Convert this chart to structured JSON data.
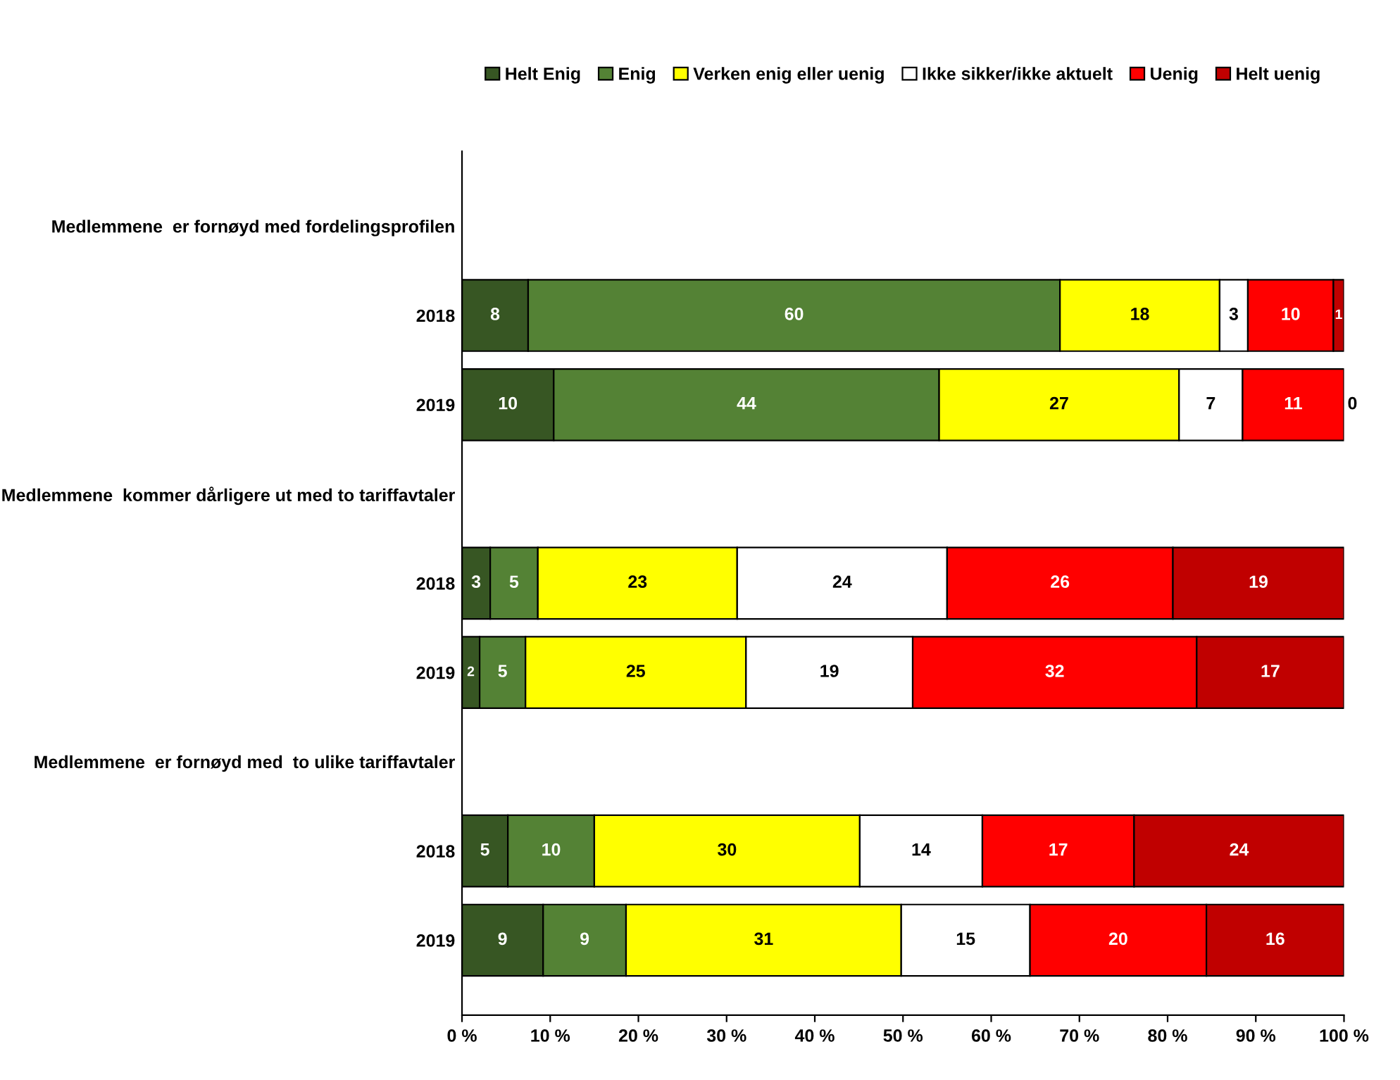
{
  "chart_data": {
    "type": "bar",
    "orientation": "horizontal",
    "stacked": true,
    "categories": [
      "Medlemmene  er fornøyd med fordelingsprofilen",
      "2018",
      "2019",
      "Medlemmene  kommer dårligere ut med to tariffavtaler",
      "2018",
      "2019",
      "Medlemmene  er fornøyd med  to ulike tariffavtaler",
      "2018",
      "2019"
    ],
    "series": [
      {
        "name": "Helt Enig",
        "color": "#375623",
        "values": [
          null,
          7.5,
          10.4,
          null,
          3.2,
          2.0,
          null,
          5.2,
          9.2
        ],
        "value_labels": [
          null,
          "8",
          "10",
          null,
          "3",
          "2",
          null,
          "5",
          "9"
        ]
      },
      {
        "name": "Enig",
        "color": "#548235",
        "values": [
          null,
          60.3,
          43.7,
          null,
          5.4,
          5.2,
          null,
          9.8,
          9.4
        ],
        "value_labels": [
          null,
          "60",
          "44",
          null,
          "5",
          "5",
          null,
          "10",
          "9"
        ]
      },
      {
        "name": "Verken enig eller uenig",
        "color": "#ffff00",
        "values": [
          null,
          18.1,
          27.2,
          null,
          22.6,
          25.0,
          null,
          30.1,
          31.2
        ],
        "value_labels": [
          null,
          "18",
          "27",
          null,
          "23",
          "25",
          null,
          "30",
          "31"
        ]
      },
      {
        "name": "Ikke sikker/ikke aktuelt",
        "color": "#ffffff",
        "values": [
          null,
          3.2,
          7.2,
          null,
          23.8,
          18.9,
          null,
          13.9,
          14.6
        ],
        "value_labels": [
          null,
          "3",
          "7",
          null,
          "24",
          "19",
          null,
          "14",
          "15"
        ]
      },
      {
        "name": "Uenig",
        "color": "#ff0000",
        "values": [
          null,
          9.7,
          11.5,
          null,
          25.6,
          32.2,
          null,
          17.2,
          20.0
        ],
        "value_labels": [
          null,
          "10",
          "11",
          null,
          "26",
          "32",
          null,
          "17",
          "20"
        ]
      },
      {
        "name": "Helt uenig",
        "color": "#c00000",
        "values": [
          null,
          1.2,
          0,
          null,
          19.4,
          16.7,
          null,
          23.8,
          15.6
        ],
        "value_labels": [
          null,
          "1",
          "0",
          null,
          "19",
          "17",
          null,
          "24",
          "16"
        ]
      }
    ],
    "xlim": [
      0,
      100
    ],
    "xticks": [
      {
        "value": 0,
        "label": "0 %"
      },
      {
        "value": 10,
        "label": "10 %"
      },
      {
        "value": 20,
        "label": "20 %"
      },
      {
        "value": 30,
        "label": "30 %"
      },
      {
        "value": 40,
        "label": "40 %"
      },
      {
        "value": 50,
        "label": "50 %"
      },
      {
        "value": 60,
        "label": "60 %"
      },
      {
        "value": 70,
        "label": "70 %"
      },
      {
        "value": 80,
        "label": "80 %"
      },
      {
        "value": 90,
        "label": "90 %"
      },
      {
        "value": 100,
        "label": "100 %"
      }
    ],
    "grid": false,
    "legend": "top"
  }
}
